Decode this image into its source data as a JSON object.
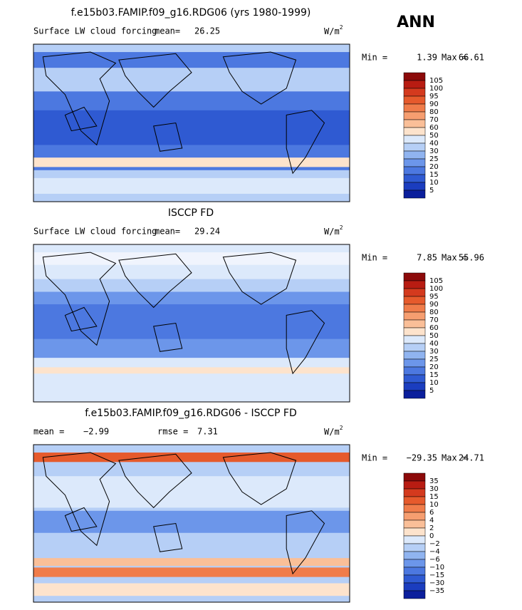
{
  "season": "ANN",
  "panels": [
    {
      "title": "f.e15b03.FAMIP.f09_g16.RDG06 (yrs 1980-1999)",
      "variable": "Surface LW cloud forcing",
      "stat_label": "mean=",
      "stat": "26.25",
      "units": "W/m",
      "units_sup": "2",
      "min_label": "Min =",
      "min": "1.39",
      "max_label": "Max =",
      "max": "66.61",
      "colorbar": {
        "labels": [
          "105",
          "100",
          "95",
          "90",
          "80",
          "70",
          "60",
          "50",
          "40",
          "30",
          "25",
          "20",
          "15",
          "10",
          "5"
        ],
        "colors": [
          "#8c0a0a",
          "#b81c12",
          "#d43a1e",
          "#e65a2c",
          "#f07c4a",
          "#f69e70",
          "#fabf98",
          "#fde3cc",
          "#dce9fb",
          "#b6cff6",
          "#90b4f0",
          "#6c96ea",
          "#4c78e0",
          "#2f5ad2",
          "#1b3dbf",
          "#0b1f9c"
        ]
      }
    },
    {
      "title": "ISCCP FD",
      "variable": "Surface LW cloud forcing",
      "stat_label": "mean=",
      "stat": "29.24",
      "units": "W/m",
      "units_sup": "2",
      "min_label": "Min =",
      "min": "7.85",
      "max_label": "Max =",
      "max": "55.96",
      "colorbar": {
        "labels": [
          "105",
          "100",
          "95",
          "90",
          "80",
          "70",
          "60",
          "50",
          "40",
          "30",
          "25",
          "20",
          "15",
          "10",
          "5"
        ],
        "colors": [
          "#8c0a0a",
          "#b81c12",
          "#d43a1e",
          "#e65a2c",
          "#f07c4a",
          "#f69e70",
          "#fabf98",
          "#fde3cc",
          "#dce9fb",
          "#b6cff6",
          "#90b4f0",
          "#6c96ea",
          "#4c78e0",
          "#2f5ad2",
          "#1b3dbf",
          "#0b1f9c"
        ]
      }
    },
    {
      "title": "f.e15b03.FAMIP.f09_g16.RDG06 - ISCCP FD",
      "stat_label": "mean =",
      "stat": "−2.99",
      "stat2_label": "rmse =",
      "stat2": "7.31",
      "units": "W/m",
      "units_sup": "2",
      "min_label": "Min =",
      "min": "−29.35",
      "max_label": "Max =",
      "max": "24.71",
      "colorbar": {
        "labels": [
          "35",
          "30",
          "15",
          "10",
          "6",
          "4",
          "2",
          "0",
          "−2",
          "−4",
          "−6",
          "−10",
          "−15",
          "−30",
          "−35"
        ],
        "colors": [
          "#8c0a0a",
          "#b81c12",
          "#d43a1e",
          "#e65a2c",
          "#f07c4a",
          "#f69e70",
          "#fabf98",
          "#fde3cc",
          "#dce9fb",
          "#b6cff6",
          "#90b4f0",
          "#6c96ea",
          "#4c78e0",
          "#2f5ad2",
          "#1b3dbf",
          "#0b1f9c"
        ]
      }
    }
  ]
}
